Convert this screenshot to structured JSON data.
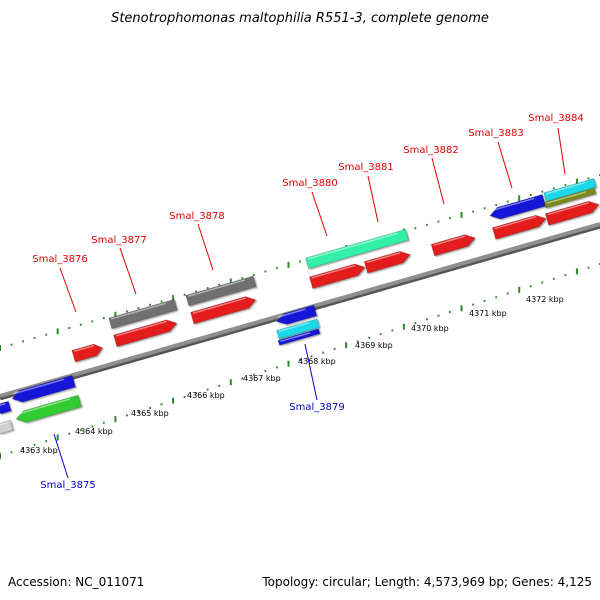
{
  "title": "Stenotrophomonas maltophilia R551-3, complete genome",
  "footer": {
    "accession": "Accession: NC_011071",
    "summary": "Topology: circular; Length: 4,573,969 bp; Genes: 4,125"
  },
  "colors": {
    "backbone": "#8f8f8f",
    "ticks": "#2a8a2a",
    "forward_label": "#e00000",
    "reverse_label": "#0000cc",
    "red": "#e31a1a",
    "gray": "#707070",
    "blue": "#1414d8",
    "green": "#33cc33",
    "mint": "#33f0a8",
    "cyan": "#1ad8e8",
    "olive": "#7a8a1a",
    "lightgray": "#cfcfcf"
  },
  "axis": {
    "unit": "kbp",
    "ticks": [
      {
        "value": 4363,
        "label": "4363 kbp"
      },
      {
        "value": 4364,
        "label": "4364 kbp"
      },
      {
        "value": 4365,
        "label": "4365 kbp"
      },
      {
        "value": 4366,
        "label": "4366 kbp"
      },
      {
        "value": 4367,
        "label": "4367 kbp"
      },
      {
        "value": 4368,
        "label": "4368 kbp"
      },
      {
        "value": 4369,
        "label": "4369 kbp"
      },
      {
        "value": 4370,
        "label": "4370 kbp"
      },
      {
        "value": 4371,
        "label": "4371 kbp"
      },
      {
        "value": 4372,
        "label": "4372 kbp"
      }
    ]
  },
  "labels": {
    "forward": [
      "Smal_3876",
      "Smal_3877",
      "Smal_3878",
      "Smal_3880",
      "Smal_3881",
      "Smal_3882",
      "Smal_3883",
      "Smal_3884"
    ],
    "reverse": [
      "Smal_3875",
      "Smal_3879"
    ]
  }
}
